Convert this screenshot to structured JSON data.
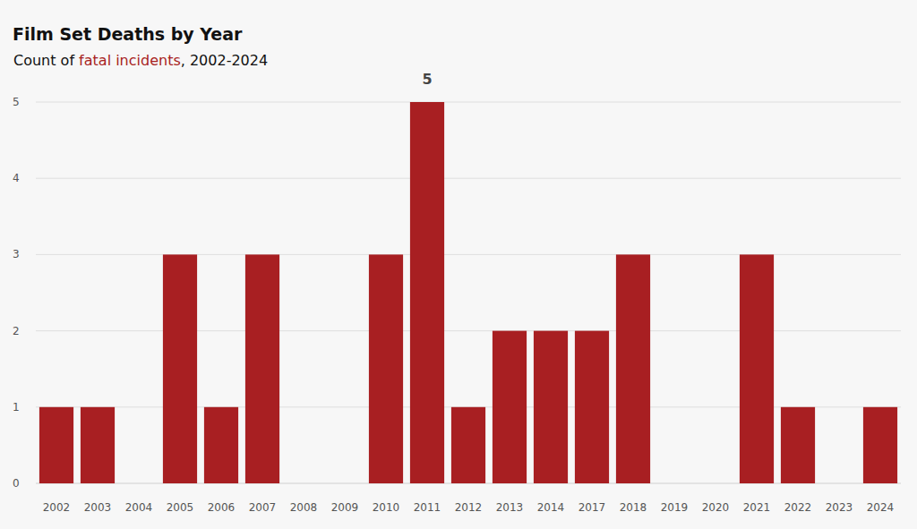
{
  "chart_data": {
    "type": "bar",
    "title": "Film Set Deaths by Year",
    "subtitle": [
      "Count of ",
      "fatal incidents",
      ", 2002-2024"
    ],
    "categories": [
      "2002",
      "2003",
      "2004",
      "2005",
      "2006",
      "2007",
      "2008",
      "2009",
      "2010",
      "2011",
      "2012",
      "2013",
      "2014",
      "2017",
      "2018",
      "2019",
      "2020",
      "2021",
      "2022",
      "2023",
      "2024"
    ],
    "values": [
      1,
      1,
      0,
      3,
      1,
      3,
      0,
      0,
      3,
      5,
      1,
      2,
      2,
      2,
      3,
      0,
      0,
      3,
      1,
      0,
      1
    ],
    "color": "#a81f22",
    "ylim": [
      0,
      5
    ],
    "yticks": [
      0,
      1,
      2,
      3,
      4,
      5
    ],
    "grid": true,
    "annotations": [
      {
        "x": "2011",
        "y": 5,
        "text": "5"
      }
    ]
  }
}
